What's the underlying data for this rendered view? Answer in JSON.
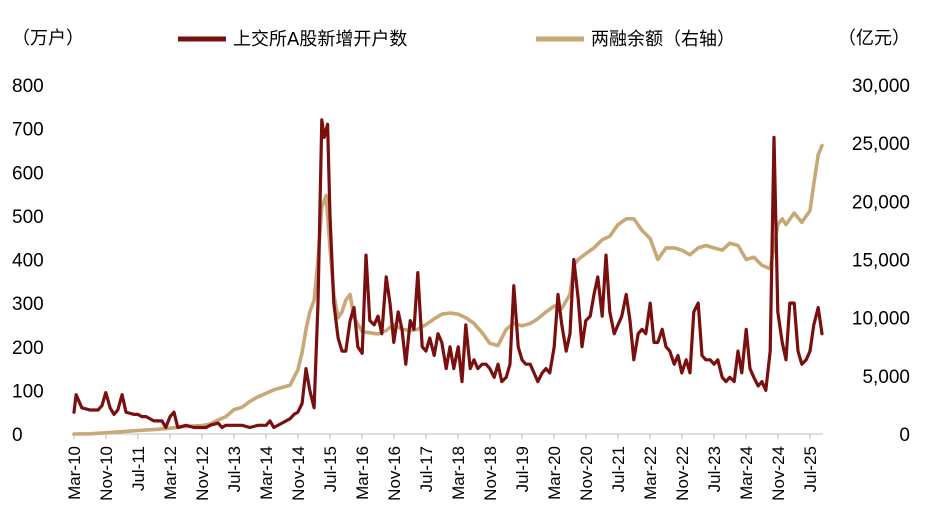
{
  "chart_data": {
    "type": "line",
    "left_unit": "（万户）",
    "right_unit": "（亿元）",
    "left_ticks": [
      "0",
      "100",
      "200",
      "300",
      "400",
      "500",
      "600",
      "700",
      "800"
    ],
    "right_ticks": [
      "0",
      "5,000",
      "10,000",
      "15,000",
      "20,000",
      "25,000",
      "30,000"
    ],
    "ylim_left": [
      0,
      800
    ],
    "ylim_right": [
      0,
      30000
    ],
    "x_range": [
      2010.167,
      2025.75
    ],
    "x_tick_labels": [
      "Mar-10",
      "Nov-10",
      "Jul-11",
      "Mar-12",
      "Nov-12",
      "Jul-13",
      "Mar-14",
      "Nov-14",
      "Jul-15",
      "Mar-16",
      "Nov-16",
      "Jul-17",
      "Mar-18",
      "Nov-18",
      "Jul-19",
      "Mar-20",
      "Nov-20",
      "Jul-21",
      "Mar-22",
      "Nov-22",
      "Jul-23",
      "Mar-24",
      "Nov-24",
      "Jul-25"
    ],
    "x_tick_values": [
      2010.167,
      2010.833,
      2011.5,
      2012.167,
      2012.833,
      2013.5,
      2014.167,
      2014.833,
      2015.5,
      2016.167,
      2016.833,
      2017.5,
      2018.167,
      2018.833,
      2019.5,
      2020.167,
      2020.833,
      2021.5,
      2022.167,
      2022.833,
      2023.5,
      2024.167,
      2024.833,
      2025.5
    ],
    "legend_position": "top",
    "grid": false,
    "series": [
      {
        "name": "上交所A股新增开户数",
        "axis": "left",
        "color": "#7a0f0f",
        "points": [
          [
            2010.167,
            50
          ],
          [
            2010.21,
            90
          ],
          [
            2010.33,
            60
          ],
          [
            2010.5,
            55
          ],
          [
            2010.67,
            55
          ],
          [
            2010.75,
            65
          ],
          [
            2010.83,
            95
          ],
          [
            2010.92,
            60
          ],
          [
            2011.0,
            45
          ],
          [
            2011.08,
            55
          ],
          [
            2011.17,
            90
          ],
          [
            2011.25,
            50
          ],
          [
            2011.42,
            45
          ],
          [
            2011.5,
            45
          ],
          [
            2011.58,
            40
          ],
          [
            2011.67,
            40
          ],
          [
            2011.83,
            30
          ],
          [
            2012.0,
            30
          ],
          [
            2012.08,
            15
          ],
          [
            2012.17,
            40
          ],
          [
            2012.25,
            50
          ],
          [
            2012.33,
            15
          ],
          [
            2012.5,
            20
          ],
          [
            2012.67,
            15
          ],
          [
            2012.83,
            15
          ],
          [
            2012.92,
            15
          ],
          [
            2013.0,
            20
          ],
          [
            2013.17,
            25
          ],
          [
            2013.25,
            15
          ],
          [
            2013.33,
            20
          ],
          [
            2013.5,
            20
          ],
          [
            2013.67,
            20
          ],
          [
            2013.83,
            15
          ],
          [
            2014.0,
            20
          ],
          [
            2014.17,
            20
          ],
          [
            2014.25,
            30
          ],
          [
            2014.33,
            15
          ],
          [
            2014.5,
            25
          ],
          [
            2014.67,
            35
          ],
          [
            2014.75,
            45
          ],
          [
            2014.83,
            50
          ],
          [
            2014.92,
            70
          ],
          [
            2015.0,
            150
          ],
          [
            2015.08,
            100
          ],
          [
            2015.17,
            60
          ],
          [
            2015.25,
            300
          ],
          [
            2015.33,
            720
          ],
          [
            2015.38,
            680
          ],
          [
            2015.45,
            710
          ],
          [
            2015.5,
            500
          ],
          [
            2015.58,
            300
          ],
          [
            2015.67,
            220
          ],
          [
            2015.75,
            190
          ],
          [
            2015.83,
            190
          ],
          [
            2015.92,
            260
          ],
          [
            2016.0,
            290
          ],
          [
            2016.08,
            200
          ],
          [
            2016.17,
            185
          ],
          [
            2016.25,
            410
          ],
          [
            2016.33,
            260
          ],
          [
            2016.42,
            250
          ],
          [
            2016.5,
            270
          ],
          [
            2016.58,
            230
          ],
          [
            2016.67,
            360
          ],
          [
            2016.75,
            300
          ],
          [
            2016.83,
            210
          ],
          [
            2016.92,
            280
          ],
          [
            2017.0,
            240
          ],
          [
            2017.08,
            160
          ],
          [
            2017.17,
            260
          ],
          [
            2017.25,
            240
          ],
          [
            2017.33,
            370
          ],
          [
            2017.42,
            200
          ],
          [
            2017.5,
            190
          ],
          [
            2017.58,
            220
          ],
          [
            2017.67,
            180
          ],
          [
            2017.75,
            230
          ],
          [
            2017.83,
            210
          ],
          [
            2017.92,
            150
          ],
          [
            2018.0,
            200
          ],
          [
            2018.08,
            150
          ],
          [
            2018.17,
            200
          ],
          [
            2018.25,
            120
          ],
          [
            2018.33,
            250
          ],
          [
            2018.42,
            150
          ],
          [
            2018.5,
            170
          ],
          [
            2018.58,
            150
          ],
          [
            2018.67,
            160
          ],
          [
            2018.75,
            160
          ],
          [
            2018.83,
            150
          ],
          [
            2018.92,
            130
          ],
          [
            2019.0,
            160
          ],
          [
            2019.08,
            120
          ],
          [
            2019.17,
            130
          ],
          [
            2019.25,
            160
          ],
          [
            2019.33,
            340
          ],
          [
            2019.42,
            200
          ],
          [
            2019.5,
            170
          ],
          [
            2019.58,
            160
          ],
          [
            2019.67,
            160
          ],
          [
            2019.75,
            140
          ],
          [
            2019.83,
            120
          ],
          [
            2019.92,
            140
          ],
          [
            2020.0,
            150
          ],
          [
            2020.08,
            140
          ],
          [
            2020.17,
            200
          ],
          [
            2020.25,
            320
          ],
          [
            2020.33,
            250
          ],
          [
            2020.42,
            190
          ],
          [
            2020.5,
            230
          ],
          [
            2020.58,
            400
          ],
          [
            2020.67,
            310
          ],
          [
            2020.75,
            200
          ],
          [
            2020.83,
            260
          ],
          [
            2020.92,
            270
          ],
          [
            2021.0,
            320
          ],
          [
            2021.08,
            360
          ],
          [
            2021.17,
            270
          ],
          [
            2021.25,
            410
          ],
          [
            2021.33,
            280
          ],
          [
            2021.42,
            230
          ],
          [
            2021.5,
            250
          ],
          [
            2021.58,
            270
          ],
          [
            2021.67,
            320
          ],
          [
            2021.75,
            260
          ],
          [
            2021.83,
            170
          ],
          [
            2021.92,
            230
          ],
          [
            2022.0,
            240
          ],
          [
            2022.08,
            230
          ],
          [
            2022.17,
            300
          ],
          [
            2022.25,
            210
          ],
          [
            2022.33,
            210
          ],
          [
            2022.42,
            240
          ],
          [
            2022.5,
            200
          ],
          [
            2022.58,
            190
          ],
          [
            2022.67,
            160
          ],
          [
            2022.75,
            180
          ],
          [
            2022.83,
            140
          ],
          [
            2022.92,
            170
          ],
          [
            2023.0,
            140
          ],
          [
            2023.08,
            280
          ],
          [
            2023.17,
            300
          ],
          [
            2023.25,
            180
          ],
          [
            2023.33,
            170
          ],
          [
            2023.42,
            170
          ],
          [
            2023.5,
            160
          ],
          [
            2023.58,
            170
          ],
          [
            2023.67,
            130
          ],
          [
            2023.75,
            120
          ],
          [
            2023.83,
            130
          ],
          [
            2023.92,
            120
          ],
          [
            2024.0,
            190
          ],
          [
            2024.08,
            140
          ],
          [
            2024.17,
            240
          ],
          [
            2024.25,
            150
          ],
          [
            2024.33,
            130
          ],
          [
            2024.42,
            110
          ],
          [
            2024.5,
            120
          ],
          [
            2024.58,
            100
          ],
          [
            2024.67,
            190
          ],
          [
            2024.75,
            680
          ],
          [
            2024.83,
            280
          ],
          [
            2024.92,
            210
          ],
          [
            2025.0,
            170
          ],
          [
            2025.08,
            300
          ],
          [
            2025.17,
            300
          ],
          [
            2025.25,
            190
          ],
          [
            2025.33,
            160
          ],
          [
            2025.42,
            170
          ],
          [
            2025.5,
            190
          ],
          [
            2025.58,
            250
          ],
          [
            2025.67,
            290
          ],
          [
            2025.75,
            230
          ]
        ]
      },
      {
        "name": "两融余额（右轴）",
        "axis": "right",
        "color": "#c9a878",
        "points": [
          [
            2010.167,
            0
          ],
          [
            2010.5,
            20
          ],
          [
            2010.83,
            100
          ],
          [
            2011.17,
            200
          ],
          [
            2011.5,
            300
          ],
          [
            2011.83,
            380
          ],
          [
            2012.17,
            500
          ],
          [
            2012.5,
            650
          ],
          [
            2012.83,
            720
          ],
          [
            2013.0,
            850
          ],
          [
            2013.17,
            1200
          ],
          [
            2013.33,
            1500
          ],
          [
            2013.5,
            2100
          ],
          [
            2013.67,
            2300
          ],
          [
            2013.83,
            2800
          ],
          [
            2014.0,
            3200
          ],
          [
            2014.17,
            3500
          ],
          [
            2014.33,
            3800
          ],
          [
            2014.5,
            4000
          ],
          [
            2014.67,
            4200
          ],
          [
            2014.83,
            5500
          ],
          [
            2014.92,
            7000
          ],
          [
            2015.0,
            9000
          ],
          [
            2015.08,
            10500
          ],
          [
            2015.17,
            11500
          ],
          [
            2015.25,
            15000
          ],
          [
            2015.33,
            19500
          ],
          [
            2015.42,
            20500
          ],
          [
            2015.5,
            16000
          ],
          [
            2015.58,
            12000
          ],
          [
            2015.67,
            10000
          ],
          [
            2015.75,
            10500
          ],
          [
            2015.83,
            11500
          ],
          [
            2015.92,
            12000
          ],
          [
            2016.0,
            10000
          ],
          [
            2016.17,
            8800
          ],
          [
            2016.33,
            8700
          ],
          [
            2016.5,
            8600
          ],
          [
            2016.67,
            8900
          ],
          [
            2016.83,
            9400
          ],
          [
            2017.0,
            9000
          ],
          [
            2017.17,
            8900
          ],
          [
            2017.33,
            9000
          ],
          [
            2017.5,
            9400
          ],
          [
            2017.67,
            9900
          ],
          [
            2017.83,
            10300
          ],
          [
            2018.0,
            10400
          ],
          [
            2018.17,
            10300
          ],
          [
            2018.33,
            10000
          ],
          [
            2018.5,
            9500
          ],
          [
            2018.67,
            8700
          ],
          [
            2018.83,
            7800
          ],
          [
            2019.0,
            7600
          ],
          [
            2019.17,
            9000
          ],
          [
            2019.33,
            9500
          ],
          [
            2019.5,
            9300
          ],
          [
            2019.67,
            9500
          ],
          [
            2019.83,
            9900
          ],
          [
            2020.0,
            10500
          ],
          [
            2020.17,
            11000
          ],
          [
            2020.33,
            10800
          ],
          [
            2020.5,
            12000
          ],
          [
            2020.58,
            14500
          ],
          [
            2020.67,
            15000
          ],
          [
            2020.83,
            15500
          ],
          [
            2021.0,
            16000
          ],
          [
            2021.17,
            16700
          ],
          [
            2021.33,
            17000
          ],
          [
            2021.5,
            18000
          ],
          [
            2021.67,
            18500
          ],
          [
            2021.83,
            18500
          ],
          [
            2022.0,
            17500
          ],
          [
            2022.17,
            16800
          ],
          [
            2022.33,
            15000
          ],
          [
            2022.5,
            16000
          ],
          [
            2022.67,
            16000
          ],
          [
            2022.83,
            15800
          ],
          [
            2023.0,
            15400
          ],
          [
            2023.17,
            16000
          ],
          [
            2023.33,
            16200
          ],
          [
            2023.5,
            16000
          ],
          [
            2023.67,
            15800
          ],
          [
            2023.83,
            16400
          ],
          [
            2024.0,
            16200
          ],
          [
            2024.17,
            15000
          ],
          [
            2024.33,
            15200
          ],
          [
            2024.5,
            14500
          ],
          [
            2024.67,
            14200
          ],
          [
            2024.83,
            18000
          ],
          [
            2024.92,
            18500
          ],
          [
            2025.0,
            18000
          ],
          [
            2025.17,
            19000
          ],
          [
            2025.33,
            18200
          ],
          [
            2025.5,
            19200
          ],
          [
            2025.58,
            21500
          ],
          [
            2025.67,
            24000
          ],
          [
            2025.75,
            24800
          ]
        ]
      }
    ]
  }
}
